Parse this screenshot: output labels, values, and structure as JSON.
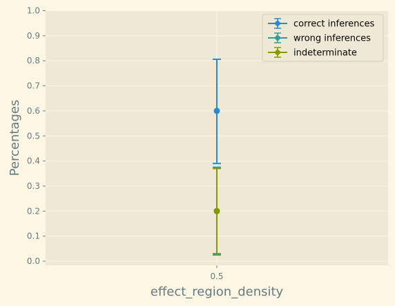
{
  "chart_data": {
    "type": "scatter",
    "xlabel": "effect_region_density",
    "ylabel": "Percentages",
    "x_ticks": [
      "0.5"
    ],
    "ylim": [
      0,
      1
    ],
    "y_ticks": [
      "0.0",
      "0.1",
      "0.2",
      "0.3",
      "0.4",
      "0.5",
      "0.6",
      "0.7",
      "0.8",
      "0.9",
      "1.0"
    ],
    "grid": true,
    "legend_position": "top-right",
    "series": [
      {
        "name": "correct inferences",
        "color": "#268bd2",
        "x": 0.5,
        "y": 0.6,
        "yerr_low": 0.39,
        "yerr_high": 0.806
      },
      {
        "name": "wrong inferences",
        "color": "#2aa198",
        "x": 0.5,
        "y": 0.2,
        "yerr_low": 0.025,
        "yerr_high": 0.375
      },
      {
        "name": "indeterminate",
        "color": "#859900",
        "x": 0.5,
        "y": 0.2,
        "yerr_low": 0.03,
        "yerr_high": 0.37
      }
    ]
  }
}
